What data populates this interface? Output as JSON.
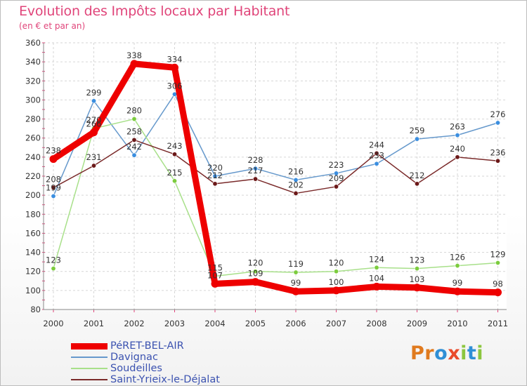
{
  "title": "Evolution des Impôts locaux par Habitant",
  "subtitle": "(en € et par an)",
  "chart_data": {
    "type": "line",
    "title": "Evolution des Impôts locaux par Habitant",
    "subtitle": "(en € et par an)",
    "xlabel": "",
    "ylabel": "",
    "ylim": [
      80,
      360
    ],
    "yticks": [
      80,
      100,
      120,
      140,
      160,
      180,
      200,
      220,
      240,
      260,
      280,
      300,
      320,
      340,
      360
    ],
    "grid": true,
    "x": [
      "2000",
      "2001",
      "2002",
      "2003",
      "2004",
      "2005",
      "2006",
      "2007",
      "2008",
      "2009",
      "2010",
      "2011"
    ],
    "series": [
      {
        "name": "PéRET-BEL-AIR",
        "color": "#ee0000",
        "bold": true,
        "values": [
          238,
          266,
          338,
          334,
          107,
          109,
          99,
          100,
          104,
          103,
          99,
          98
        ],
        "labels": [
          "238",
          "266",
          "338",
          "334",
          "107",
          "109",
          "99",
          "100",
          "104",
          "103",
          "99",
          "98"
        ]
      },
      {
        "name": "Davignac",
        "color": "#6699cc",
        "marker": "#3a8ee0",
        "values": [
          199,
          299,
          242,
          306,
          220,
          228,
          216,
          223,
          233,
          259,
          263,
          276
        ],
        "labels": [
          "199",
          "299",
          "242",
          "306",
          "220",
          "228",
          "216",
          "223",
          "233",
          "259",
          "263",
          "276"
        ]
      },
      {
        "name": "Soudeilles",
        "color": "#a8e08a",
        "marker": "#7ccc3e",
        "values": [
          123,
          270,
          280,
          215,
          115,
          120,
          119,
          120,
          124,
          123,
          126,
          129
        ],
        "labels": [
          "123",
          "270",
          "280",
          "215",
          "115",
          "120",
          "119",
          "120",
          "124",
          "123",
          "126",
          "129"
        ]
      },
      {
        "name": "Saint-Yrieix-le-Déjalat",
        "color": "#7a2a2a",
        "marker": "#6b1818",
        "values": [
          208,
          231,
          258,
          243,
          212,
          217,
          202,
          209,
          244,
          212,
          240,
          236
        ],
        "labels": [
          "208",
          "231",
          "258",
          "243",
          "212",
          "217",
          "202",
          "209",
          "244",
          "212",
          "240",
          "236"
        ]
      }
    ]
  },
  "legend": {
    "items": [
      {
        "label": "PéRET-BEL-AIR",
        "color": "#ee0000"
      },
      {
        "label": "Davignac",
        "color": "#6699cc"
      },
      {
        "label": "Soudeilles",
        "color": "#a8e08a"
      },
      {
        "label": "Saint-Yrieix-le-Déjalat",
        "color": "#7a2a2a"
      }
    ]
  },
  "logo": {
    "text": "Proxiti",
    "letters": [
      {
        "ch": "P",
        "color": "#e07a1e"
      },
      {
        "ch": "r",
        "color": "#e07a1e"
      },
      {
        "ch": "o",
        "color": "#2f8fd6"
      },
      {
        "ch": "x",
        "color": "#e94a2b"
      },
      {
        "ch": "i",
        "color": "#8cc63f"
      },
      {
        "ch": "t",
        "color": "#2f8fd6"
      },
      {
        "ch": "i",
        "color": "#8cc63f"
      }
    ]
  }
}
